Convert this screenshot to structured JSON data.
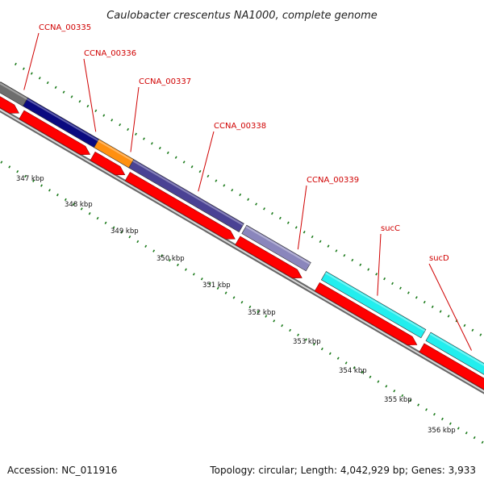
{
  "title": "Caulobacter crescentus NA1000, complete genome",
  "footer": {
    "accession": "Accession: NC_011916",
    "topology": "Topology: circular; Length: 4,042,929 bp; Genes: 3,933"
  },
  "colors": {
    "cds": "#ff0000",
    "backbone": "#8c8c8c",
    "tick": "#1a7a1a",
    "label": "#d00000"
  },
  "genes": [
    {
      "name": "CCNA_00335",
      "color": "#6e6e6e"
    },
    {
      "name": "CCNA_00336",
      "color": "#0a0a80"
    },
    {
      "name": "CCNA_00337",
      "color": "#ff9010"
    },
    {
      "name": "CCNA_00338",
      "color": "#4a4294"
    },
    {
      "name": "CCNA_00339",
      "color": "#8a86bc"
    },
    {
      "name": "sucC",
      "color": "#22eeee"
    },
    {
      "name": "sucD",
      "color": "#22eeee"
    }
  ],
  "kbp_labels": [
    "347 kbp",
    "348 kbp",
    "349 kbp",
    "350 kbp",
    "351 kbp",
    "352 kbp",
    "353 kbp",
    "354 kbp",
    "355 kbp",
    "356 kbp"
  ]
}
